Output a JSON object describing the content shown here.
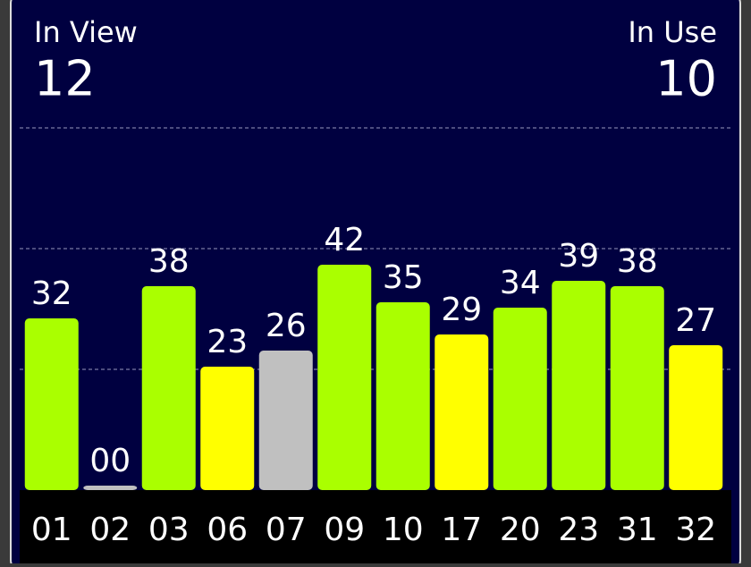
{
  "chart_data": {
    "type": "bar",
    "header": {
      "in_view_label": "In View",
      "in_view": 12,
      "in_use_label": "In Use",
      "in_use": 10
    },
    "categories": [
      "01",
      "02",
      "03",
      "06",
      "07",
      "09",
      "10",
      "17",
      "20",
      "23",
      "31",
      "32"
    ],
    "values": [
      32,
      0,
      38,
      23,
      26,
      42,
      35,
      29,
      34,
      39,
      38,
      27
    ],
    "value_labels": [
      "32",
      "00",
      "38",
      "23",
      "26",
      "42",
      "35",
      "29",
      "34",
      "39",
      "38",
      "27"
    ],
    "colors": [
      "#aaff00",
      "#c0c0c0",
      "#aaff00",
      "#ffff00",
      "#c0c0c0",
      "#aaff00",
      "#aaff00",
      "#ffff00",
      "#aaff00",
      "#aaff00",
      "#aaff00",
      "#ffff00"
    ],
    "ylim": [
      0,
      90
    ],
    "yticks": [
      22.5,
      45,
      67.5
    ],
    "grid": true
  }
}
